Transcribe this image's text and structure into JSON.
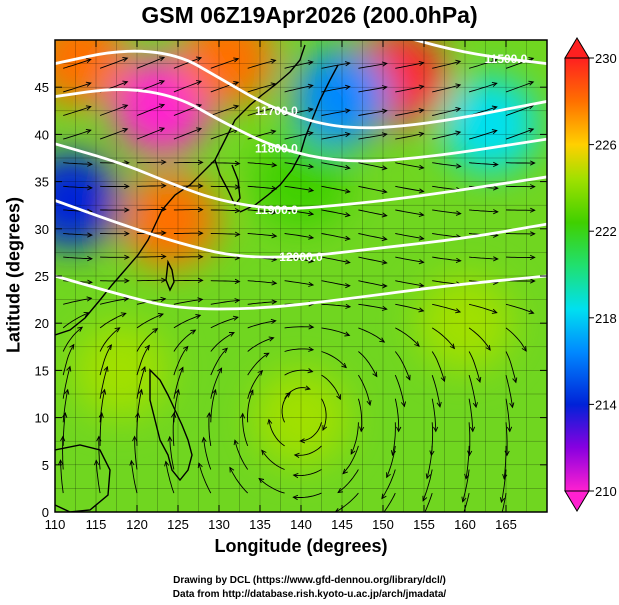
{
  "title": "GSM 06Z19Apr2026 (200.0hPa)",
  "chart_data": {
    "type": "heatmap",
    "xlabel": "Longitude (degrees)",
    "ylabel": "Latitude  (degrees)",
    "xlim": [
      110,
      170
    ],
    "ylim": [
      0,
      50
    ],
    "xticks": [
      "110",
      "115",
      "120",
      "125",
      "130",
      "135",
      "140",
      "145",
      "150",
      "155",
      "160",
      "165"
    ],
    "yticks": [
      "0",
      "5",
      "10",
      "15",
      "20",
      "25",
      "30",
      "35",
      "40",
      "45"
    ],
    "colorbar": {
      "min": 210,
      "max": 230,
      "labels": [
        "230",
        "226",
        "222",
        "218",
        "214",
        "210"
      ],
      "colors": [
        "#ff20d0",
        "#8800e0",
        "#0022d8",
        "#0088ff",
        "#00e0f0",
        "#20e070",
        "#40d000",
        "#a0e000",
        "#ffd000",
        "#ff7000",
        "#ff2020"
      ]
    },
    "contours": [
      {
        "label": "11700.0",
        "points": [
          [
            110,
            47.5
          ],
          [
            118,
            49
          ],
          [
            125,
            48.5
          ],
          [
            130,
            46
          ],
          [
            137,
            42.5
          ],
          [
            145,
            40.5
          ],
          [
            155,
            41
          ],
          [
            170,
            43.5
          ]
        ]
      },
      {
        "label": "11800.0",
        "points": [
          [
            110,
            44
          ],
          [
            118,
            45
          ],
          [
            125,
            44
          ],
          [
            130,
            41.5
          ],
          [
            137,
            38.5
          ],
          [
            145,
            37
          ],
          [
            155,
            37.5
          ],
          [
            170,
            39.5
          ]
        ]
      },
      {
        "label": "11900.0",
        "points": [
          [
            110,
            39
          ],
          [
            118,
            37
          ],
          [
            125,
            34.5
          ],
          [
            130,
            33
          ],
          [
            137,
            32
          ],
          [
            145,
            32.5
          ],
          [
            155,
            33.5
          ],
          [
            170,
            35.5
          ]
        ]
      },
      {
        "label": "12000.0",
        "points": [
          [
            110,
            33
          ],
          [
            118,
            30.5
          ],
          [
            125,
            28.5
          ],
          [
            132,
            27
          ],
          [
            140,
            27
          ],
          [
            150,
            28
          ],
          [
            160,
            29
          ],
          [
            170,
            30.5
          ]
        ]
      },
      {
        "label": "",
        "points": [
          [
            110,
            25
          ],
          [
            118,
            23
          ],
          [
            125,
            21.5
          ],
          [
            135,
            21.5
          ],
          [
            145,
            22.5
          ],
          [
            158,
            24
          ],
          [
            170,
            25
          ]
        ]
      },
      {
        "label": "11500.0",
        "points": [
          [
            150,
            51
          ],
          [
            158,
            49
          ],
          [
            165,
            48
          ],
          [
            170,
            47.5
          ]
        ]
      },
      {
        "label": "",
        "points": [
          [
            110,
            51
          ],
          [
            115,
            50
          ],
          [
            120,
            50.5
          ]
        ]
      }
    ],
    "blobs": [
      {
        "lon": 123,
        "lat": 43,
        "value": 210
      },
      {
        "lon": 112,
        "lat": 33,
        "value": 214
      },
      {
        "lon": 124,
        "lat": 31,
        "value": 228
      },
      {
        "lon": 113,
        "lat": 48,
        "value": 228
      },
      {
        "lon": 131,
        "lat": 48,
        "value": 227
      },
      {
        "lon": 152,
        "lat": 46,
        "value": 229
      },
      {
        "lon": 163,
        "lat": 41,
        "value": 218
      },
      {
        "lon": 145,
        "lat": 44,
        "value": 216
      },
      {
        "lon": 140,
        "lat": 35,
        "value": 222
      },
      {
        "lon": 140,
        "lat": 10,
        "value": 223
      },
      {
        "lon": 118,
        "lat": 15,
        "value": 224
      },
      {
        "lon": 160,
        "lat": 20,
        "value": 224
      }
    ]
  },
  "credits": {
    "line1": "Drawing by DCL (https://www.gfd-dennou.org/library/dcl/)",
    "line2": "Data from http://database.rish.kyoto-u.ac.jp/arch/jmadata/"
  }
}
